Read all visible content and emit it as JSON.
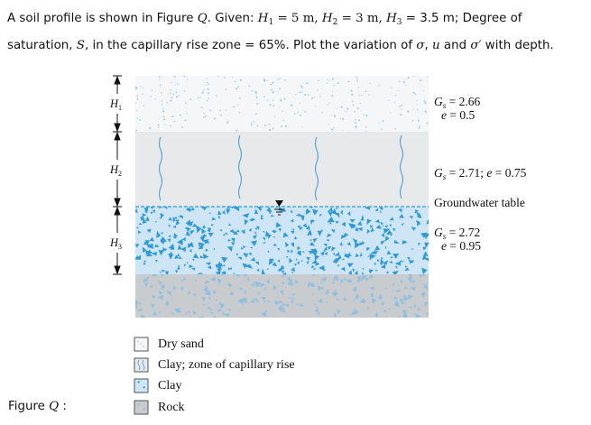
{
  "problem": {
    "line1_a": "A soil profile is shown in Figure ",
    "line1_fig": "Q",
    "line1_b": ". Given: ",
    "h1_sym": "H",
    "h1_sub": "1",
    "h1_val": " = 5 m,  ",
    "h2_sym": "H",
    "h2_sub": "2",
    "h2_val": " = 3 m,  ",
    "h3_sym": "H",
    "h3_sub": "3",
    "h3_val": " = 3.5 m;  Degree of",
    "line2_a": "saturation, ",
    "line2_s": "S",
    "line2_b": ",  in the capillary rise zone = 65%. Plot the variation of ",
    "sigma": "σ",
    "comma": ", ",
    "u": "u",
    "and": " and ",
    "sigma_eff": "σ′",
    "line2_c": " with depth."
  },
  "figure": {
    "colors": {
      "dry_sand_bg": "#f4f6f8",
      "dry_sand_dots": "#9ec9e4",
      "capillary_bg": "#e7e9eb",
      "clay_bg": "#cde5f5",
      "clay_flakes": "#2f9ad6",
      "rock_bg": "#c9cccf",
      "rock_flakes": "#8fc0e0",
      "wave_lines": "#4aa0d8"
    },
    "dim_labels": {
      "h1": {
        "sym": "H",
        "sub": "1"
      },
      "h2": {
        "sym": "H",
        "sub": "2"
      },
      "h3": {
        "sym": "H",
        "sub": "3"
      }
    },
    "layer_labels": {
      "dry_sand_gs": "G",
      "dry_sand_gs_sub": "s",
      "dry_sand_gs_val": " = 2.66",
      "dry_sand_e": "e",
      "dry_sand_e_val": " = 0.5",
      "cap_gs": "G",
      "cap_gs_sub": "s",
      "cap_gs_val": " = 2.71; ",
      "cap_e": "e",
      "cap_e_val": " = 0.75",
      "gwt": "Groundwater table",
      "clay_gs": "G",
      "clay_gs_sub": "s",
      "clay_gs_val": " = 2.72",
      "clay_e": "e",
      "clay_e_val": " = 0.95"
    },
    "legend": [
      {
        "label": "Dry sand",
        "swatch": "dry-sand"
      },
      {
        "label": "Clay; zone of capillary rise",
        "swatch": "capillary"
      },
      {
        "label": "Clay",
        "swatch": "clay"
      },
      {
        "label": "Rock",
        "swatch": "rock"
      }
    ],
    "caption": {
      "text": "Figure ",
      "q": "Q",
      "colon": " :"
    }
  }
}
